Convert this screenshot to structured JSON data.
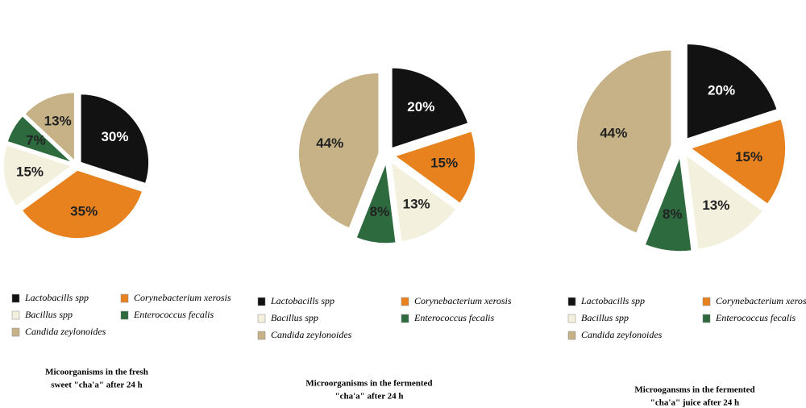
{
  "chart_data": [
    {
      "type": "pie",
      "title": [
        "Micoorganisms in  the fresh",
        "sweet \"cha'a\" after 24 h"
      ],
      "categories": [
        "Lactobacills spp",
        "Corynebacterium xerosis",
        "Bacillus spp",
        "Enterococcus fecalis",
        "Candida zeylonoides"
      ],
      "values": [
        30,
        35,
        15,
        7,
        13
      ],
      "value_labels": [
        "30%",
        "35%",
        "15%",
        "7%",
        "13%"
      ],
      "colors": [
        "#121212",
        "#e8821e",
        "#f4f0de",
        "#2d6a3e",
        "#c6b286"
      ]
    },
    {
      "type": "pie",
      "title": [
        "Microorganisms in the fermented",
        "\"cha'a\" after 24 h"
      ],
      "categories": [
        "Lactobacills spp",
        "Corynebacterium xerosis",
        "Bacillus spp",
        "Enterococcus fecalis",
        "Candida zeylonoides"
      ],
      "values": [
        20,
        15,
        13,
        8,
        44
      ],
      "value_labels": [
        "20%",
        "15%",
        "13%",
        "8%",
        "44%"
      ],
      "colors": [
        "#121212",
        "#e8821e",
        "#f4f0de",
        "#2d6a3e",
        "#c6b286"
      ]
    },
    {
      "type": "pie",
      "title": [
        "Microogansms in the fermented",
        "\"cha'a\" juice after 24 h"
      ],
      "categories": [
        "Lactobacills spp",
        "Corynebacterium xerosis",
        "Bacillus spp",
        "Enterococcus fecalis",
        "Candida zeylonoides"
      ],
      "values": [
        20,
        15,
        13,
        8,
        44
      ],
      "value_labels": [
        "20%",
        "15%",
        "13%",
        "8%",
        "44%"
      ],
      "colors": [
        "#121212",
        "#e8821e",
        "#f4f0de",
        "#2d6a3e",
        "#c6b286"
      ]
    }
  ]
}
